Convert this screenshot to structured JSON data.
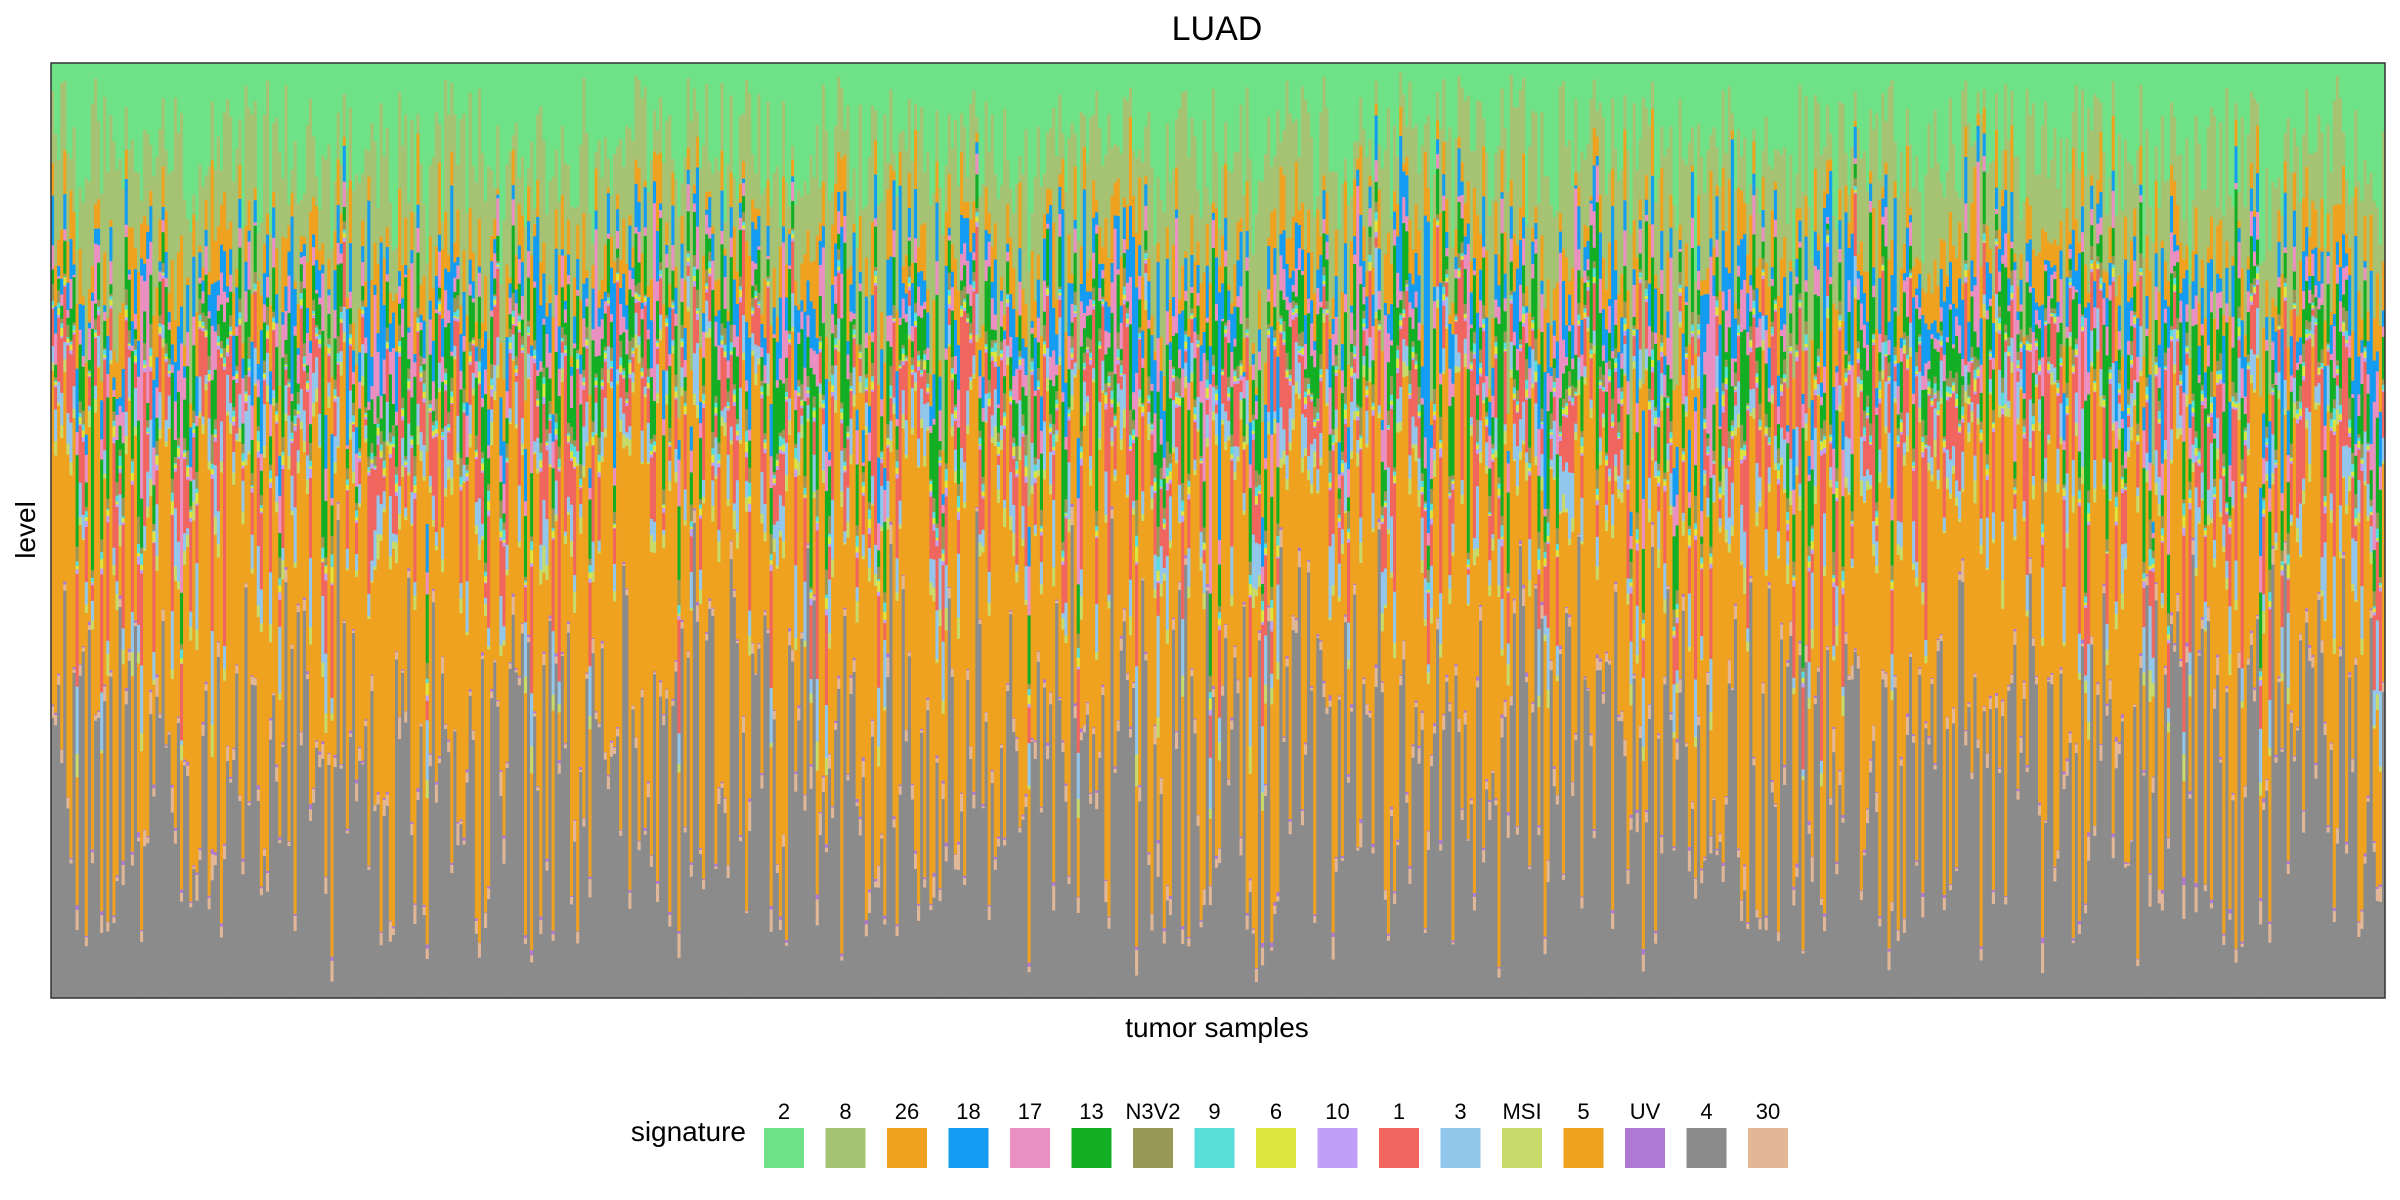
{
  "chart_data": {
    "type": "bar",
    "stacked": true,
    "normalized": true,
    "title": "LUAD",
    "xlabel": "tumor samples",
    "ylabel": "level",
    "ylim": [
      0,
      1
    ],
    "grid": false,
    "legend_position": "bottom",
    "legend_title": "signature",
    "n_samples": 760,
    "x_tick_labels_shown": false,
    "y_tick_labels_shown": false,
    "signatures": [
      {
        "name": "2",
        "color": "#6FE287"
      },
      {
        "name": "8",
        "color": "#A6C373"
      },
      {
        "name": "26",
        "color": "#EFA21F"
      },
      {
        "name": "18",
        "color": "#149CF2"
      },
      {
        "name": "17",
        "color": "#EA8FC1"
      },
      {
        "name": "13",
        "color": "#12AF25"
      },
      {
        "name": "N3V2",
        "color": "#9A9857"
      },
      {
        "name": "9",
        "color": "#58DED9"
      },
      {
        "name": "6",
        "color": "#DCE43E"
      },
      {
        "name": "10",
        "color": "#BFA0F6"
      },
      {
        "name": "1",
        "color": "#F0665E"
      },
      {
        "name": "3",
        "color": "#92C6EB"
      },
      {
        "name": "MSI",
        "color": "#C8DB6A"
      },
      {
        "name": "5",
        "color": "#EFA21F"
      },
      {
        "name": "UV",
        "color": "#AE79D2"
      },
      {
        "name": "4",
        "color": "#8B8B8B"
      },
      {
        "name": "30",
        "color": "#E2B797"
      }
    ],
    "typical_composition": {
      "2": 0.09,
      "8": 0.1,
      "26": 0.04,
      "18": 0.03,
      "17": 0.02,
      "13": 0.04,
      "N3V2": 0.01,
      "9": 0.005,
      "6": 0.005,
      "10": 0.003,
      "1": 0.05,
      "3": 0.03,
      "MSI": 0.01,
      "5": 0.27,
      "UV": 0.002,
      "4": 0.27,
      "30": 0.01
    }
  }
}
